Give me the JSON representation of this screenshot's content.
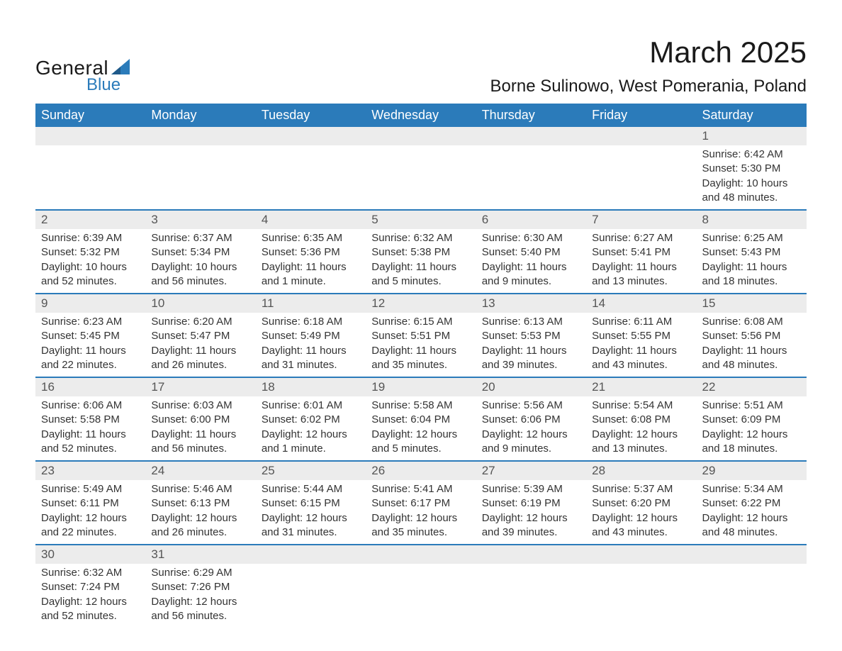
{
  "logo": {
    "general": "General",
    "blue": "Blue"
  },
  "title": "March 2025",
  "location": "Borne Sulinowo, West Pomerania, Poland",
  "colors": {
    "header_bg": "#2b7bba",
    "header_text": "#ffffff",
    "daynum_bg": "#ececec",
    "row_border": "#2b7bba",
    "body_text": "#333333",
    "logo_blue": "#2b7bba"
  },
  "days_of_week": [
    "Sunday",
    "Monday",
    "Tuesday",
    "Wednesday",
    "Thursday",
    "Friday",
    "Saturday"
  ],
  "weeks": [
    [
      {
        "num": "",
        "sunrise": "",
        "sunset": "",
        "daylight1": "",
        "daylight2": ""
      },
      {
        "num": "",
        "sunrise": "",
        "sunset": "",
        "daylight1": "",
        "daylight2": ""
      },
      {
        "num": "",
        "sunrise": "",
        "sunset": "",
        "daylight1": "",
        "daylight2": ""
      },
      {
        "num": "",
        "sunrise": "",
        "sunset": "",
        "daylight1": "",
        "daylight2": ""
      },
      {
        "num": "",
        "sunrise": "",
        "sunset": "",
        "daylight1": "",
        "daylight2": ""
      },
      {
        "num": "",
        "sunrise": "",
        "sunset": "",
        "daylight1": "",
        "daylight2": ""
      },
      {
        "num": "1",
        "sunrise": "Sunrise: 6:42 AM",
        "sunset": "Sunset: 5:30 PM",
        "daylight1": "Daylight: 10 hours",
        "daylight2": "and 48 minutes."
      }
    ],
    [
      {
        "num": "2",
        "sunrise": "Sunrise: 6:39 AM",
        "sunset": "Sunset: 5:32 PM",
        "daylight1": "Daylight: 10 hours",
        "daylight2": "and 52 minutes."
      },
      {
        "num": "3",
        "sunrise": "Sunrise: 6:37 AM",
        "sunset": "Sunset: 5:34 PM",
        "daylight1": "Daylight: 10 hours",
        "daylight2": "and 56 minutes."
      },
      {
        "num": "4",
        "sunrise": "Sunrise: 6:35 AM",
        "sunset": "Sunset: 5:36 PM",
        "daylight1": "Daylight: 11 hours",
        "daylight2": "and 1 minute."
      },
      {
        "num": "5",
        "sunrise": "Sunrise: 6:32 AM",
        "sunset": "Sunset: 5:38 PM",
        "daylight1": "Daylight: 11 hours",
        "daylight2": "and 5 minutes."
      },
      {
        "num": "6",
        "sunrise": "Sunrise: 6:30 AM",
        "sunset": "Sunset: 5:40 PM",
        "daylight1": "Daylight: 11 hours",
        "daylight2": "and 9 minutes."
      },
      {
        "num": "7",
        "sunrise": "Sunrise: 6:27 AM",
        "sunset": "Sunset: 5:41 PM",
        "daylight1": "Daylight: 11 hours",
        "daylight2": "and 13 minutes."
      },
      {
        "num": "8",
        "sunrise": "Sunrise: 6:25 AM",
        "sunset": "Sunset: 5:43 PM",
        "daylight1": "Daylight: 11 hours",
        "daylight2": "and 18 minutes."
      }
    ],
    [
      {
        "num": "9",
        "sunrise": "Sunrise: 6:23 AM",
        "sunset": "Sunset: 5:45 PM",
        "daylight1": "Daylight: 11 hours",
        "daylight2": "and 22 minutes."
      },
      {
        "num": "10",
        "sunrise": "Sunrise: 6:20 AM",
        "sunset": "Sunset: 5:47 PM",
        "daylight1": "Daylight: 11 hours",
        "daylight2": "and 26 minutes."
      },
      {
        "num": "11",
        "sunrise": "Sunrise: 6:18 AM",
        "sunset": "Sunset: 5:49 PM",
        "daylight1": "Daylight: 11 hours",
        "daylight2": "and 31 minutes."
      },
      {
        "num": "12",
        "sunrise": "Sunrise: 6:15 AM",
        "sunset": "Sunset: 5:51 PM",
        "daylight1": "Daylight: 11 hours",
        "daylight2": "and 35 minutes."
      },
      {
        "num": "13",
        "sunrise": "Sunrise: 6:13 AM",
        "sunset": "Sunset: 5:53 PM",
        "daylight1": "Daylight: 11 hours",
        "daylight2": "and 39 minutes."
      },
      {
        "num": "14",
        "sunrise": "Sunrise: 6:11 AM",
        "sunset": "Sunset: 5:55 PM",
        "daylight1": "Daylight: 11 hours",
        "daylight2": "and 43 minutes."
      },
      {
        "num": "15",
        "sunrise": "Sunrise: 6:08 AM",
        "sunset": "Sunset: 5:56 PM",
        "daylight1": "Daylight: 11 hours",
        "daylight2": "and 48 minutes."
      }
    ],
    [
      {
        "num": "16",
        "sunrise": "Sunrise: 6:06 AM",
        "sunset": "Sunset: 5:58 PM",
        "daylight1": "Daylight: 11 hours",
        "daylight2": "and 52 minutes."
      },
      {
        "num": "17",
        "sunrise": "Sunrise: 6:03 AM",
        "sunset": "Sunset: 6:00 PM",
        "daylight1": "Daylight: 11 hours",
        "daylight2": "and 56 minutes."
      },
      {
        "num": "18",
        "sunrise": "Sunrise: 6:01 AM",
        "sunset": "Sunset: 6:02 PM",
        "daylight1": "Daylight: 12 hours",
        "daylight2": "and 1 minute."
      },
      {
        "num": "19",
        "sunrise": "Sunrise: 5:58 AM",
        "sunset": "Sunset: 6:04 PM",
        "daylight1": "Daylight: 12 hours",
        "daylight2": "and 5 minutes."
      },
      {
        "num": "20",
        "sunrise": "Sunrise: 5:56 AM",
        "sunset": "Sunset: 6:06 PM",
        "daylight1": "Daylight: 12 hours",
        "daylight2": "and 9 minutes."
      },
      {
        "num": "21",
        "sunrise": "Sunrise: 5:54 AM",
        "sunset": "Sunset: 6:08 PM",
        "daylight1": "Daylight: 12 hours",
        "daylight2": "and 13 minutes."
      },
      {
        "num": "22",
        "sunrise": "Sunrise: 5:51 AM",
        "sunset": "Sunset: 6:09 PM",
        "daylight1": "Daylight: 12 hours",
        "daylight2": "and 18 minutes."
      }
    ],
    [
      {
        "num": "23",
        "sunrise": "Sunrise: 5:49 AM",
        "sunset": "Sunset: 6:11 PM",
        "daylight1": "Daylight: 12 hours",
        "daylight2": "and 22 minutes."
      },
      {
        "num": "24",
        "sunrise": "Sunrise: 5:46 AM",
        "sunset": "Sunset: 6:13 PM",
        "daylight1": "Daylight: 12 hours",
        "daylight2": "and 26 minutes."
      },
      {
        "num": "25",
        "sunrise": "Sunrise: 5:44 AM",
        "sunset": "Sunset: 6:15 PM",
        "daylight1": "Daylight: 12 hours",
        "daylight2": "and 31 minutes."
      },
      {
        "num": "26",
        "sunrise": "Sunrise: 5:41 AM",
        "sunset": "Sunset: 6:17 PM",
        "daylight1": "Daylight: 12 hours",
        "daylight2": "and 35 minutes."
      },
      {
        "num": "27",
        "sunrise": "Sunrise: 5:39 AM",
        "sunset": "Sunset: 6:19 PM",
        "daylight1": "Daylight: 12 hours",
        "daylight2": "and 39 minutes."
      },
      {
        "num": "28",
        "sunrise": "Sunrise: 5:37 AM",
        "sunset": "Sunset: 6:20 PM",
        "daylight1": "Daylight: 12 hours",
        "daylight2": "and 43 minutes."
      },
      {
        "num": "29",
        "sunrise": "Sunrise: 5:34 AM",
        "sunset": "Sunset: 6:22 PM",
        "daylight1": "Daylight: 12 hours",
        "daylight2": "and 48 minutes."
      }
    ],
    [
      {
        "num": "30",
        "sunrise": "Sunrise: 6:32 AM",
        "sunset": "Sunset: 7:24 PM",
        "daylight1": "Daylight: 12 hours",
        "daylight2": "and 52 minutes."
      },
      {
        "num": "31",
        "sunrise": "Sunrise: 6:29 AM",
        "sunset": "Sunset: 7:26 PM",
        "daylight1": "Daylight: 12 hours",
        "daylight2": "and 56 minutes."
      },
      {
        "num": "",
        "sunrise": "",
        "sunset": "",
        "daylight1": "",
        "daylight2": ""
      },
      {
        "num": "",
        "sunrise": "",
        "sunset": "",
        "daylight1": "",
        "daylight2": ""
      },
      {
        "num": "",
        "sunrise": "",
        "sunset": "",
        "daylight1": "",
        "daylight2": ""
      },
      {
        "num": "",
        "sunrise": "",
        "sunset": "",
        "daylight1": "",
        "daylight2": ""
      },
      {
        "num": "",
        "sunrise": "",
        "sunset": "",
        "daylight1": "",
        "daylight2": ""
      }
    ]
  ]
}
